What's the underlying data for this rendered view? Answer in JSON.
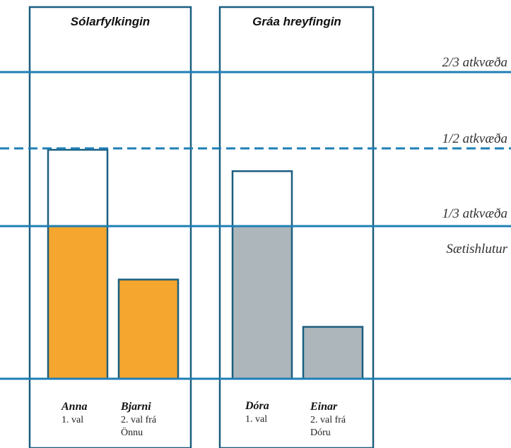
{
  "parties": [
    {
      "title": "Sólarfylkingin",
      "candidates": [
        {
          "name": "Anna",
          "note_lines": [
            "1. val"
          ],
          "votes": 1.0,
          "extra": 0.5
        },
        {
          "name": "Bjarni",
          "note_lines": [
            "2. val frá",
            "Önnu"
          ],
          "votes": 0.65,
          "extra": 0
        }
      ]
    },
    {
      "title": "Gráa hreyfingin",
      "candidates": [
        {
          "name": "Dóra",
          "note_lines": [
            "1. val"
          ],
          "votes": 1.0,
          "extra": 0.36
        },
        {
          "name": "Einar",
          "note_lines": [
            "2. val frá",
            "Dóru"
          ],
          "votes": 0.34,
          "extra": 0
        }
      ]
    }
  ],
  "levels": [
    {
      "label": "2/3 atkvæða",
      "value": 2.0,
      "style": "solid"
    },
    {
      "label": "1/2 atkvæða",
      "value": 1.5,
      "style": "dashed"
    },
    {
      "label": "1/3 atkvæða",
      "value": 1.0,
      "style": "solid"
    },
    {
      "label": "Sætishlutur",
      "value": null,
      "style": "none"
    }
  ],
  "colors": {
    "line": "#1f7fb6",
    "frame": "#1b5e80",
    "bar_outline": "#1b5e80",
    "party1_fill": "#f5a62e",
    "party2_fill": "#adb6bb",
    "extra_fill": "#ffffff"
  }
}
